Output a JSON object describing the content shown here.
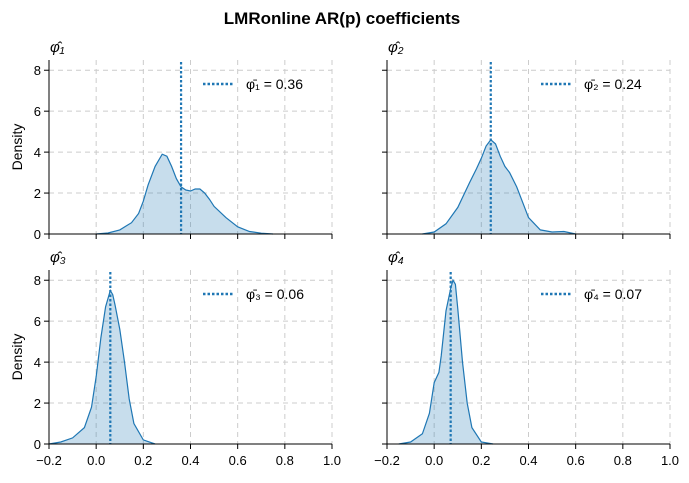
{
  "chart_data": {
    "type": "area",
    "title": "LMRonline AR(p) coefficients",
    "xlim": [
      -0.2,
      1.0
    ],
    "ylim": [
      0,
      8.5
    ],
    "x_ticks": [
      "−0.2",
      "0.0",
      "0.2",
      "0.4",
      "0.6",
      "0.8",
      "1.0"
    ],
    "x_tick_values": [
      -0.2,
      0.0,
      0.2,
      0.4,
      0.6,
      0.8,
      1.0
    ],
    "y_ticks": [
      "0",
      "2",
      "4",
      "6",
      "8"
    ],
    "y_tick_values": [
      0,
      2,
      4,
      6,
      8
    ],
    "ylabel": "Density",
    "grid": true,
    "legend_position": "top-right",
    "colors": {
      "line": "#1f77b4",
      "fill": "#1f77b4",
      "grid": "#cccccc"
    },
    "panels": [
      {
        "title": "φ̂₁",
        "mean_value": 0.36,
        "legend_label": "φ̄₁ = 0.36",
        "x": [
          0.0,
          0.05,
          0.1,
          0.15,
          0.18,
          0.2,
          0.22,
          0.25,
          0.28,
          0.3,
          0.32,
          0.34,
          0.36,
          0.38,
          0.4,
          0.42,
          0.44,
          0.46,
          0.48,
          0.5,
          0.55,
          0.6,
          0.65,
          0.7,
          0.75
        ],
        "y": [
          0.0,
          0.05,
          0.2,
          0.55,
          1.0,
          1.6,
          2.4,
          3.3,
          3.9,
          3.8,
          3.3,
          2.7,
          2.3,
          2.15,
          2.1,
          2.2,
          2.2,
          2.0,
          1.7,
          1.35,
          0.8,
          0.35,
          0.12,
          0.04,
          0.0
        ]
      },
      {
        "title": "φ̂₂",
        "mean_value": 0.24,
        "legend_label": "φ̄₂ = 0.24",
        "x": [
          -0.05,
          0.0,
          0.05,
          0.1,
          0.15,
          0.18,
          0.2,
          0.22,
          0.24,
          0.26,
          0.28,
          0.3,
          0.32,
          0.35,
          0.38,
          0.4,
          0.45,
          0.5,
          0.55,
          0.6
        ],
        "y": [
          0.0,
          0.1,
          0.5,
          1.3,
          2.5,
          3.2,
          3.7,
          4.3,
          4.6,
          4.4,
          3.8,
          3.3,
          3.0,
          2.3,
          1.4,
          0.8,
          0.2,
          0.1,
          0.12,
          0.0
        ]
      },
      {
        "title": "φ̂₃",
        "mean_value": 0.06,
        "legend_label": "φ̄₃ = 0.06",
        "x": [
          -0.2,
          -0.15,
          -0.1,
          -0.05,
          -0.02,
          0.0,
          0.02,
          0.04,
          0.06,
          0.07,
          0.08,
          0.1,
          0.12,
          0.14,
          0.16,
          0.2,
          0.25
        ],
        "y": [
          0.0,
          0.1,
          0.3,
          0.8,
          1.8,
          3.3,
          5.2,
          6.7,
          7.5,
          7.3,
          6.8,
          5.6,
          4.0,
          2.2,
          1.0,
          0.2,
          0.0
        ]
      },
      {
        "title": "φ̂₄",
        "mean_value": 0.07,
        "legend_label": "φ̄₄ = 0.07",
        "x": [
          -0.15,
          -0.1,
          -0.05,
          -0.02,
          0.0,
          0.02,
          0.03,
          0.05,
          0.07,
          0.08,
          0.09,
          0.1,
          0.12,
          0.14,
          0.16,
          0.2,
          0.25
        ],
        "y": [
          0.0,
          0.1,
          0.5,
          1.5,
          3.0,
          3.5,
          4.3,
          6.5,
          7.6,
          8.0,
          7.8,
          6.6,
          4.0,
          2.0,
          0.8,
          0.1,
          0.0
        ]
      }
    ]
  }
}
